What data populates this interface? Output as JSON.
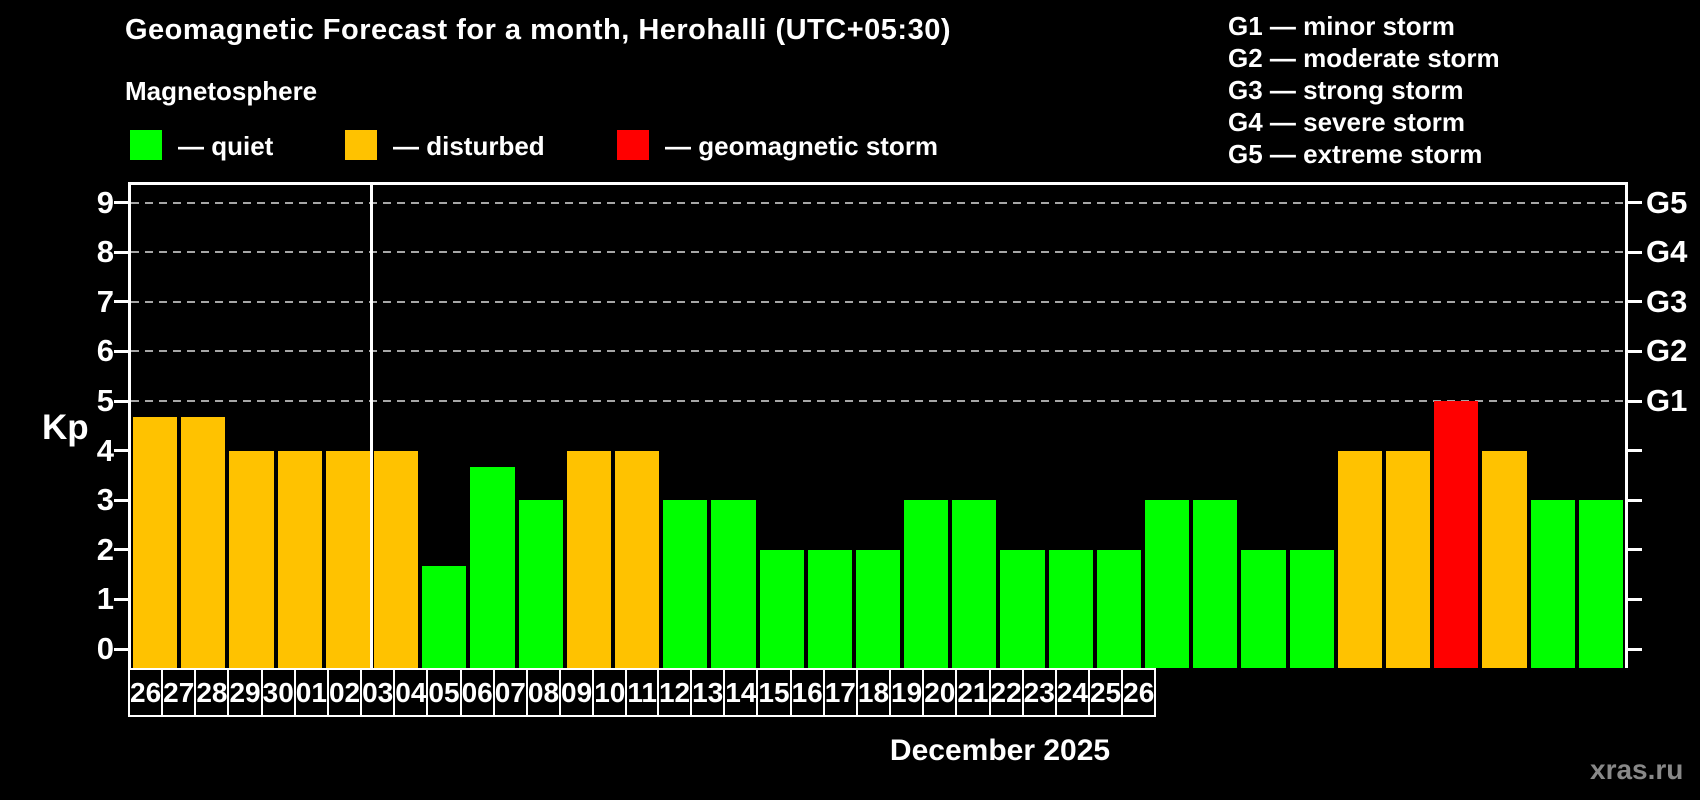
{
  "title": "Geomagnetic Forecast for a month, Herohalli (UTC+05:30)",
  "subtitle": "Magnetosphere",
  "legend": {
    "quiet": "— quiet",
    "disturbed": "— disturbed",
    "storm": "— geomagnetic storm"
  },
  "g_scale": [
    "G1 — minor storm",
    "G2 — moderate storm",
    "G3 — strong storm",
    "G4 — severe storm",
    "G5 — extreme storm"
  ],
  "watermark": "xras.ru",
  "colors": {
    "quiet": "#00ff00",
    "disturbed": "#ffc200",
    "storm": "#ff0000",
    "grid": "#a6a6a6",
    "axis": "#ffffff"
  },
  "chart_data": {
    "type": "bar",
    "title": "Geomagnetic Forecast for a month, Herohalli (UTC+05:30)",
    "xlabel": "December 2025",
    "ylabel": "Kp",
    "ylim": [
      0,
      9
    ],
    "y_ticks": [
      0,
      1,
      2,
      3,
      4,
      5,
      6,
      7,
      8,
      9
    ],
    "grid_levels": [
      5,
      6,
      7,
      8,
      9
    ],
    "g_levels": [
      {
        "kp": 5,
        "label": "G1"
      },
      {
        "kp": 6,
        "label": "G2"
      },
      {
        "kp": 7,
        "label": "G3"
      },
      {
        "kp": 8,
        "label": "G4"
      },
      {
        "kp": 9,
        "label": "G5"
      }
    ],
    "categories": [
      "26",
      "27",
      "28",
      "29",
      "30",
      "01",
      "02",
      "03",
      "04",
      "05",
      "06",
      "07",
      "08",
      "09",
      "10",
      "11",
      "12",
      "13",
      "14",
      "15",
      "16",
      "17",
      "18",
      "19",
      "20",
      "21",
      "22",
      "23",
      "24",
      "25",
      "26"
    ],
    "values": [
      4.67,
      4.67,
      4,
      4,
      4,
      4,
      1.67,
      3.67,
      3,
      4,
      4,
      3,
      3,
      2,
      2,
      2,
      3,
      3,
      2,
      2,
      2,
      3,
      3,
      2,
      2,
      4,
      4,
      5,
      4,
      3,
      3
    ],
    "levels": [
      "disturbed",
      "disturbed",
      "disturbed",
      "disturbed",
      "disturbed",
      "disturbed",
      "quiet",
      "quiet",
      "quiet",
      "disturbed",
      "disturbed",
      "quiet",
      "quiet",
      "quiet",
      "quiet",
      "quiet",
      "quiet",
      "quiet",
      "quiet",
      "quiet",
      "quiet",
      "quiet",
      "quiet",
      "quiet",
      "quiet",
      "disturbed",
      "disturbed",
      "storm",
      "disturbed",
      "quiet",
      "quiet"
    ],
    "month_boundary_index": 5
  }
}
